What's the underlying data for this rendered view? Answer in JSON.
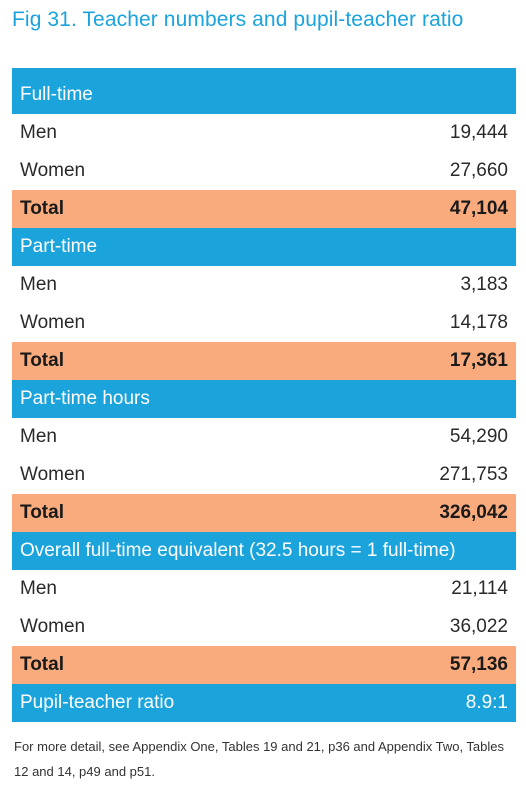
{
  "title": "Fig 31. Teacher numbers and pupil-teacher ratio",
  "sections": [
    {
      "header": "Full-time",
      "rows": [
        {
          "label": "Men",
          "value": "19,444"
        },
        {
          "label": "Women",
          "value": "27,660"
        }
      ],
      "total": {
        "label": "Total",
        "value": "47,104"
      }
    },
    {
      "header": "Part-time",
      "rows": [
        {
          "label": "Men",
          "value": "3,183"
        },
        {
          "label": "Women",
          "value": "14,178"
        }
      ],
      "total": {
        "label": "Total",
        "value": "17,361"
      }
    },
    {
      "header": "Part-time hours",
      "rows": [
        {
          "label": "Men",
          "value": "54,290"
        },
        {
          "label": "Women",
          "value": "271,753"
        }
      ],
      "total": {
        "label": "Total",
        "value": "326,042"
      }
    },
    {
      "header": "Overall full-time equivalent (32.5 hours = 1 full-time)",
      "rows": [
        {
          "label": "Men",
          "value": "21,114"
        },
        {
          "label": "Women",
          "value": "36,022"
        }
      ],
      "total": {
        "label": "Total",
        "value": "57,136"
      }
    }
  ],
  "ratio": {
    "label": "Pupil-teacher ratio",
    "value": "8.9:1"
  },
  "note": "For more detail, see Appendix One, Tables 19 and 21, p36 and Appendix Two, Tables 12 and 14, p49 and p51.",
  "colors": {
    "header": "#1ba3dc",
    "total": "#f9ab7e",
    "title": "#1aa3dc"
  }
}
